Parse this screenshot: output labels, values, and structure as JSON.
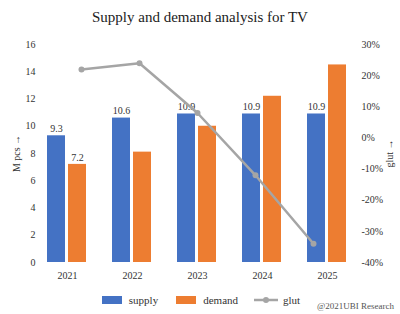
{
  "chart_data": {
    "type": "bar",
    "title": "Supply and demand analysis for TV",
    "ylabel": "M pcs",
    "y2label": "glut",
    "categories": [
      "2021",
      "2022",
      "2023",
      "2024",
      "2025"
    ],
    "series": [
      {
        "name": "supply",
        "color": "#4472c4",
        "values": [
          9.3,
          10.6,
          10.9,
          10.9,
          10.9
        ]
      },
      {
        "name": "demand",
        "color": "#ed7d31",
        "values": [
          7.2,
          8.1,
          10.0,
          12.2,
          14.5
        ],
        "value_labels": [
          "7.2",
          null,
          null,
          null,
          null
        ]
      },
      {
        "name": "glut",
        "type": "line",
        "axis": "y2",
        "color": "#a5a5a5",
        "marker": "circle",
        "values": [
          22,
          24,
          8,
          -12,
          -34
        ]
      }
    ],
    "ylim": [
      0,
      16
    ],
    "yticks": [
      0,
      2,
      4,
      6,
      8,
      10,
      12,
      14,
      16
    ],
    "y2lim": [
      -40,
      30
    ],
    "y2ticks": [
      {
        "value": -40,
        "label": "-40%"
      },
      {
        "value": -30,
        "label": "-30%"
      },
      {
        "value": -20,
        "label": "-20%"
      },
      {
        "value": -10,
        "label": "-10%"
      },
      {
        "value": 0,
        "label": "0%"
      },
      {
        "value": 10,
        "label": "10%"
      },
      {
        "value": 20,
        "label": "20%"
      },
      {
        "value": 30,
        "label": "30%"
      }
    ],
    "grid": false,
    "legend": "bottom",
    "data_labels": true,
    "annotations": [
      "@2021UBI Research"
    ]
  }
}
